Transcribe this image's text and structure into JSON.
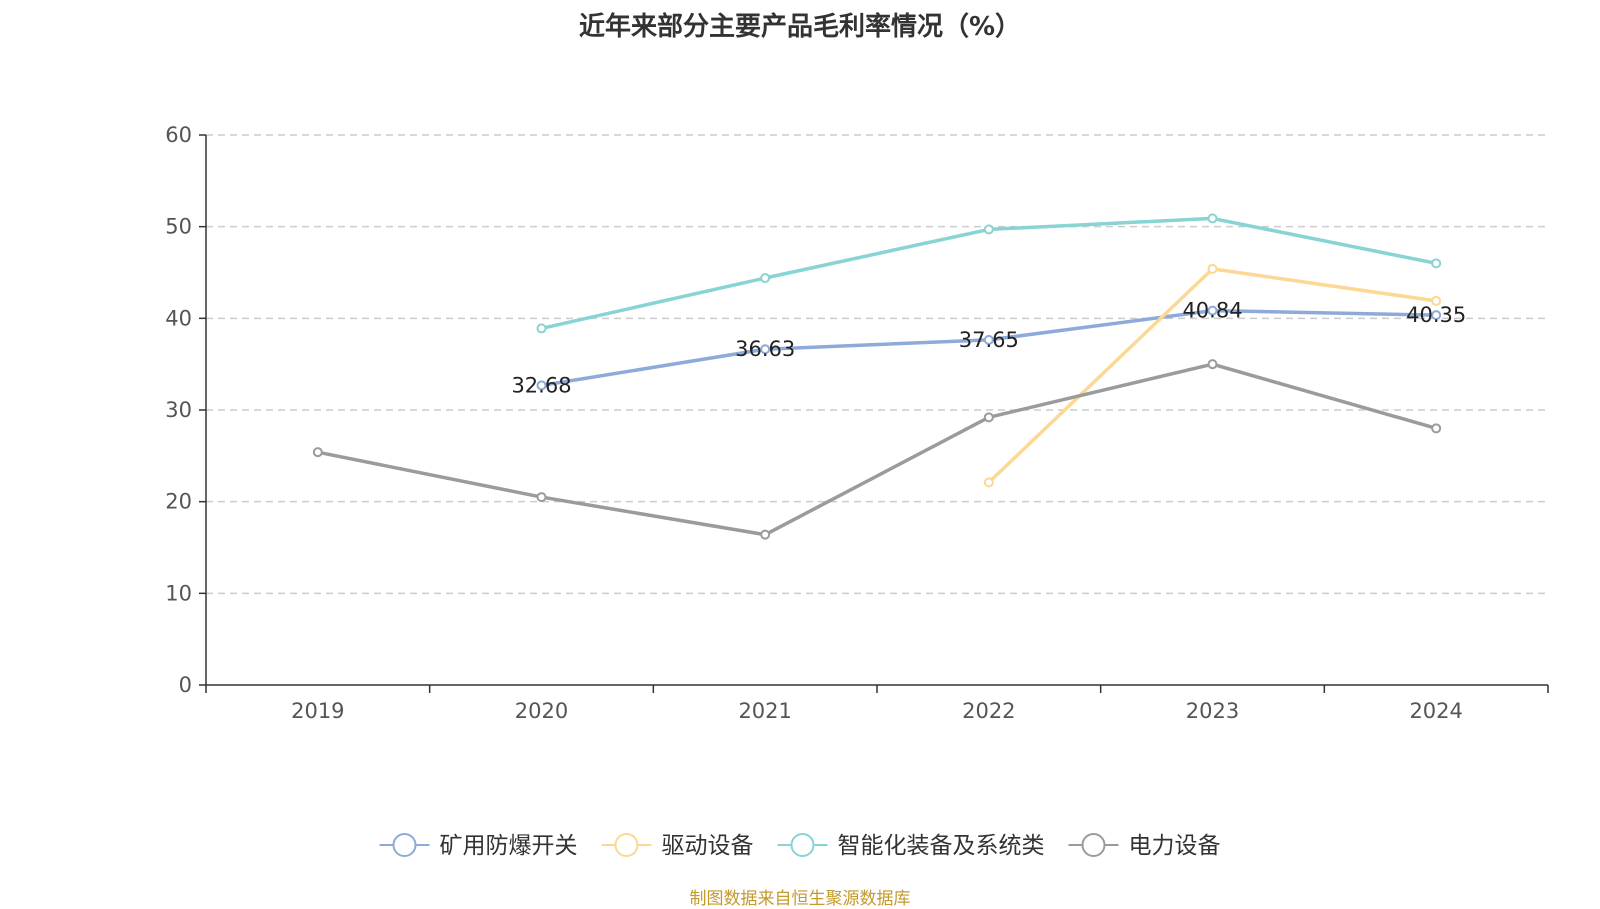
{
  "title": "近年来部分主要产品毛利率情况（%）",
  "source": "制图数据来自恒生聚源数据库",
  "chart_data": {
    "type": "line",
    "categories": [
      "2019",
      "2020",
      "2021",
      "2022",
      "2023",
      "2024"
    ],
    "ylim": [
      0,
      60
    ],
    "yticks": [
      0,
      10,
      20,
      30,
      40,
      50,
      60
    ],
    "grid": true,
    "legend_position": "bottom",
    "series": [
      {
        "name": "矿用防爆开关",
        "color": "#8eaad8",
        "values": [
          null,
          32.68,
          36.63,
          37.65,
          40.84,
          40.35
        ],
        "labels": [
          null,
          "32.68",
          "36.63",
          "37.65",
          "40.84",
          "40.35"
        ]
      },
      {
        "name": "驱动设备",
        "color": "#fbd994",
        "values": [
          null,
          null,
          null,
          22.1,
          45.4,
          41.9
        ],
        "labels": [
          null,
          null,
          null,
          null,
          null,
          null
        ]
      },
      {
        "name": "智能化装备及系统类",
        "color": "#88d3d3",
        "values": [
          null,
          38.9,
          44.4,
          49.7,
          50.9,
          46.0
        ],
        "labels": [
          null,
          null,
          null,
          null,
          null,
          null
        ]
      },
      {
        "name": "电力设备",
        "color": "#9b9b9b",
        "values": [
          25.4,
          20.5,
          16.4,
          29.2,
          35.0,
          28.0
        ],
        "labels": [
          null,
          null,
          null,
          null,
          null,
          null
        ]
      }
    ]
  }
}
